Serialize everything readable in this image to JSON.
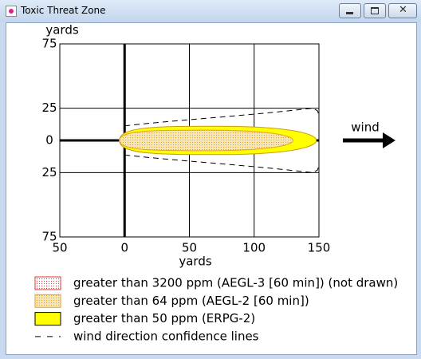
{
  "window": {
    "title": "Toxic Threat Zone"
  },
  "chart_data": {
    "type": "threat-zone",
    "ylabel": "yards",
    "xlabel": "yards",
    "xlim": [
      -50,
      150
    ],
    "ylim": [
      -75,
      75
    ],
    "xticks": [
      {
        "value": -50,
        "label": "50"
      },
      0,
      50,
      100,
      150
    ],
    "yticks": [
      75,
      25,
      0,
      {
        "value": -25,
        "label": "25"
      },
      {
        "value": -75,
        "label": "75"
      }
    ],
    "grid": true,
    "annotation": "wind",
    "series": [
      {
        "name": "greater than 3200 ppm (AEGL-3 [60 min]) (not drawn)",
        "color": "#e03030",
        "fill": "#ffffff",
        "style": "dots"
      },
      {
        "name": "greater than 64 ppm (AEGL-2 [60 min])",
        "color": "#e8a020",
        "fill": "#f5e6b8",
        "style": "dots",
        "start": -4,
        "end": 130,
        "halfwidth": 8
      },
      {
        "name": "greater than 50 ppm (ERPG-2)",
        "color": "#000000",
        "fill": "#ffff00",
        "style": "solid",
        "start": -4,
        "end": 148,
        "halfwidth": 11
      },
      {
        "name": "wind direction confidence lines",
        "color": "#000000",
        "style": "dashed",
        "start": 0,
        "end": 150,
        "halfwidth": 25
      }
    ]
  }
}
